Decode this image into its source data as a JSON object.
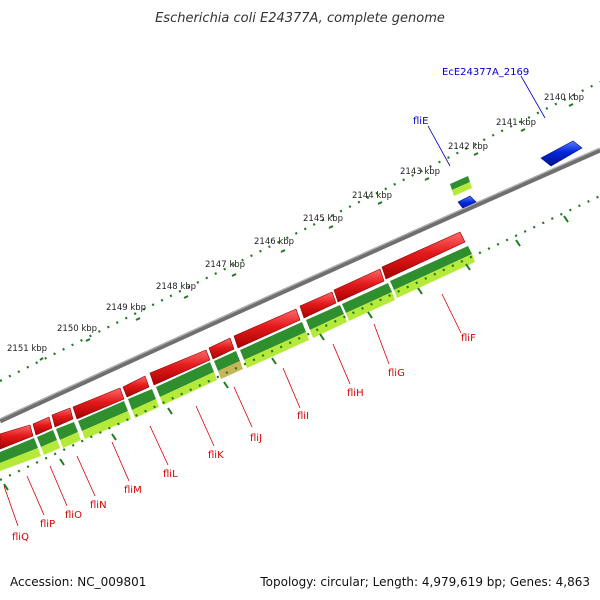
{
  "title": "Escherichia coli E24377A, complete genome",
  "footer": {
    "accession": "Accession: NC_009801",
    "summary": "Topology: circular; Length: 4,979,619 bp; Genes: 4,863"
  },
  "colors": {
    "backbone": "#8a8a8a",
    "forward_gene": "#e31a1c",
    "reverse_gene": "#0026d9",
    "cds_dark": "#2f8f2f",
    "cds_light": "#b6ea3a",
    "tick": "#1f7a1f",
    "label_forward": "#d40000",
    "label_reverse": "#0000cc"
  },
  "map": {
    "kbp_labels": [
      "2140 kbp",
      "2141 kbp",
      "2142 kbp",
      "2143 kbp",
      "2144 kbp",
      "2145 kbp",
      "2146 kbp",
      "2147 kbp",
      "2148 kbp",
      "2149 kbp",
      "2150 kbp",
      "2151 kbp"
    ],
    "reverse_genes": [
      "EcE24377A_2169",
      "fliE"
    ],
    "forward_genes": [
      "fliF",
      "fliG",
      "fliH",
      "fliI",
      "fliJ",
      "fliK",
      "fliL",
      "fliM",
      "fliN",
      "fliO",
      "fliP",
      "fliQ"
    ]
  }
}
